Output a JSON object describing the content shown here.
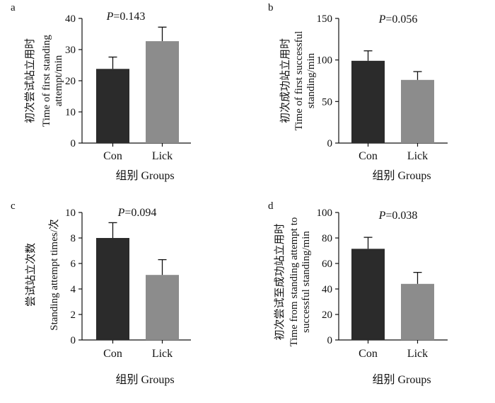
{
  "figure": {
    "panels": [
      {
        "letter": "a",
        "p_value": "P=0.143",
        "ylabel_cn": "初次尝试站立用时",
        "ylabel_en": [
          "Time of first standing",
          "attempt/min"
        ],
        "xlabel": "组别  Groups"
      },
      {
        "letter": "b",
        "p_value": "P=0.056",
        "ylabel_cn": "初次成功站立用时",
        "ylabel_en": [
          "Time of first successful",
          "standing/min"
        ],
        "xlabel": "组别  Groups"
      },
      {
        "letter": "c",
        "p_value": "P=0.094",
        "ylabel_cn": "尝试站立次数",
        "ylabel_en": [
          "Standing attempt times/次"
        ],
        "xlabel": "组别  Groups"
      },
      {
        "letter": "d",
        "p_value": "P=0.038",
        "ylabel_cn": "初次尝试至成功站立用时",
        "ylabel_en": [
          "Time from standing attempt to",
          "successful standing/min"
        ],
        "xlabel": "组别  Groups"
      }
    ]
  },
  "chart_data": [
    {
      "type": "bar",
      "categories": [
        "Con",
        "Lick"
      ],
      "values": [
        23.8,
        32.7
      ],
      "errors": [
        3.8,
        4.5
      ],
      "ylim": [
        0,
        40
      ],
      "yticks": [
        0,
        10,
        20,
        30,
        40
      ],
      "bar_colors": [
        "#2b2b2b",
        "#8c8c8c"
      ]
    },
    {
      "type": "bar",
      "categories": [
        "Con",
        "Lick"
      ],
      "values": [
        99,
        76
      ],
      "errors": [
        12,
        10
      ],
      "ylim": [
        0,
        150
      ],
      "yticks": [
        0,
        50,
        100,
        150
      ],
      "bar_colors": [
        "#2b2b2b",
        "#8c8c8c"
      ]
    },
    {
      "type": "bar",
      "categories": [
        "Con",
        "Lick"
      ],
      "values": [
        8.0,
        5.1
      ],
      "errors": [
        1.2,
        1.2
      ],
      "ylim": [
        0,
        10
      ],
      "yticks": [
        0,
        2,
        4,
        6,
        8,
        10
      ],
      "bar_colors": [
        "#2b2b2b",
        "#8c8c8c"
      ]
    },
    {
      "type": "bar",
      "categories": [
        "Con",
        "Lick"
      ],
      "values": [
        71.5,
        44
      ],
      "errors": [
        9,
        9
      ],
      "ylim": [
        0,
        100
      ],
      "yticks": [
        0,
        20,
        40,
        60,
        80,
        100
      ],
      "bar_colors": [
        "#2b2b2b",
        "#8c8c8c"
      ]
    }
  ]
}
